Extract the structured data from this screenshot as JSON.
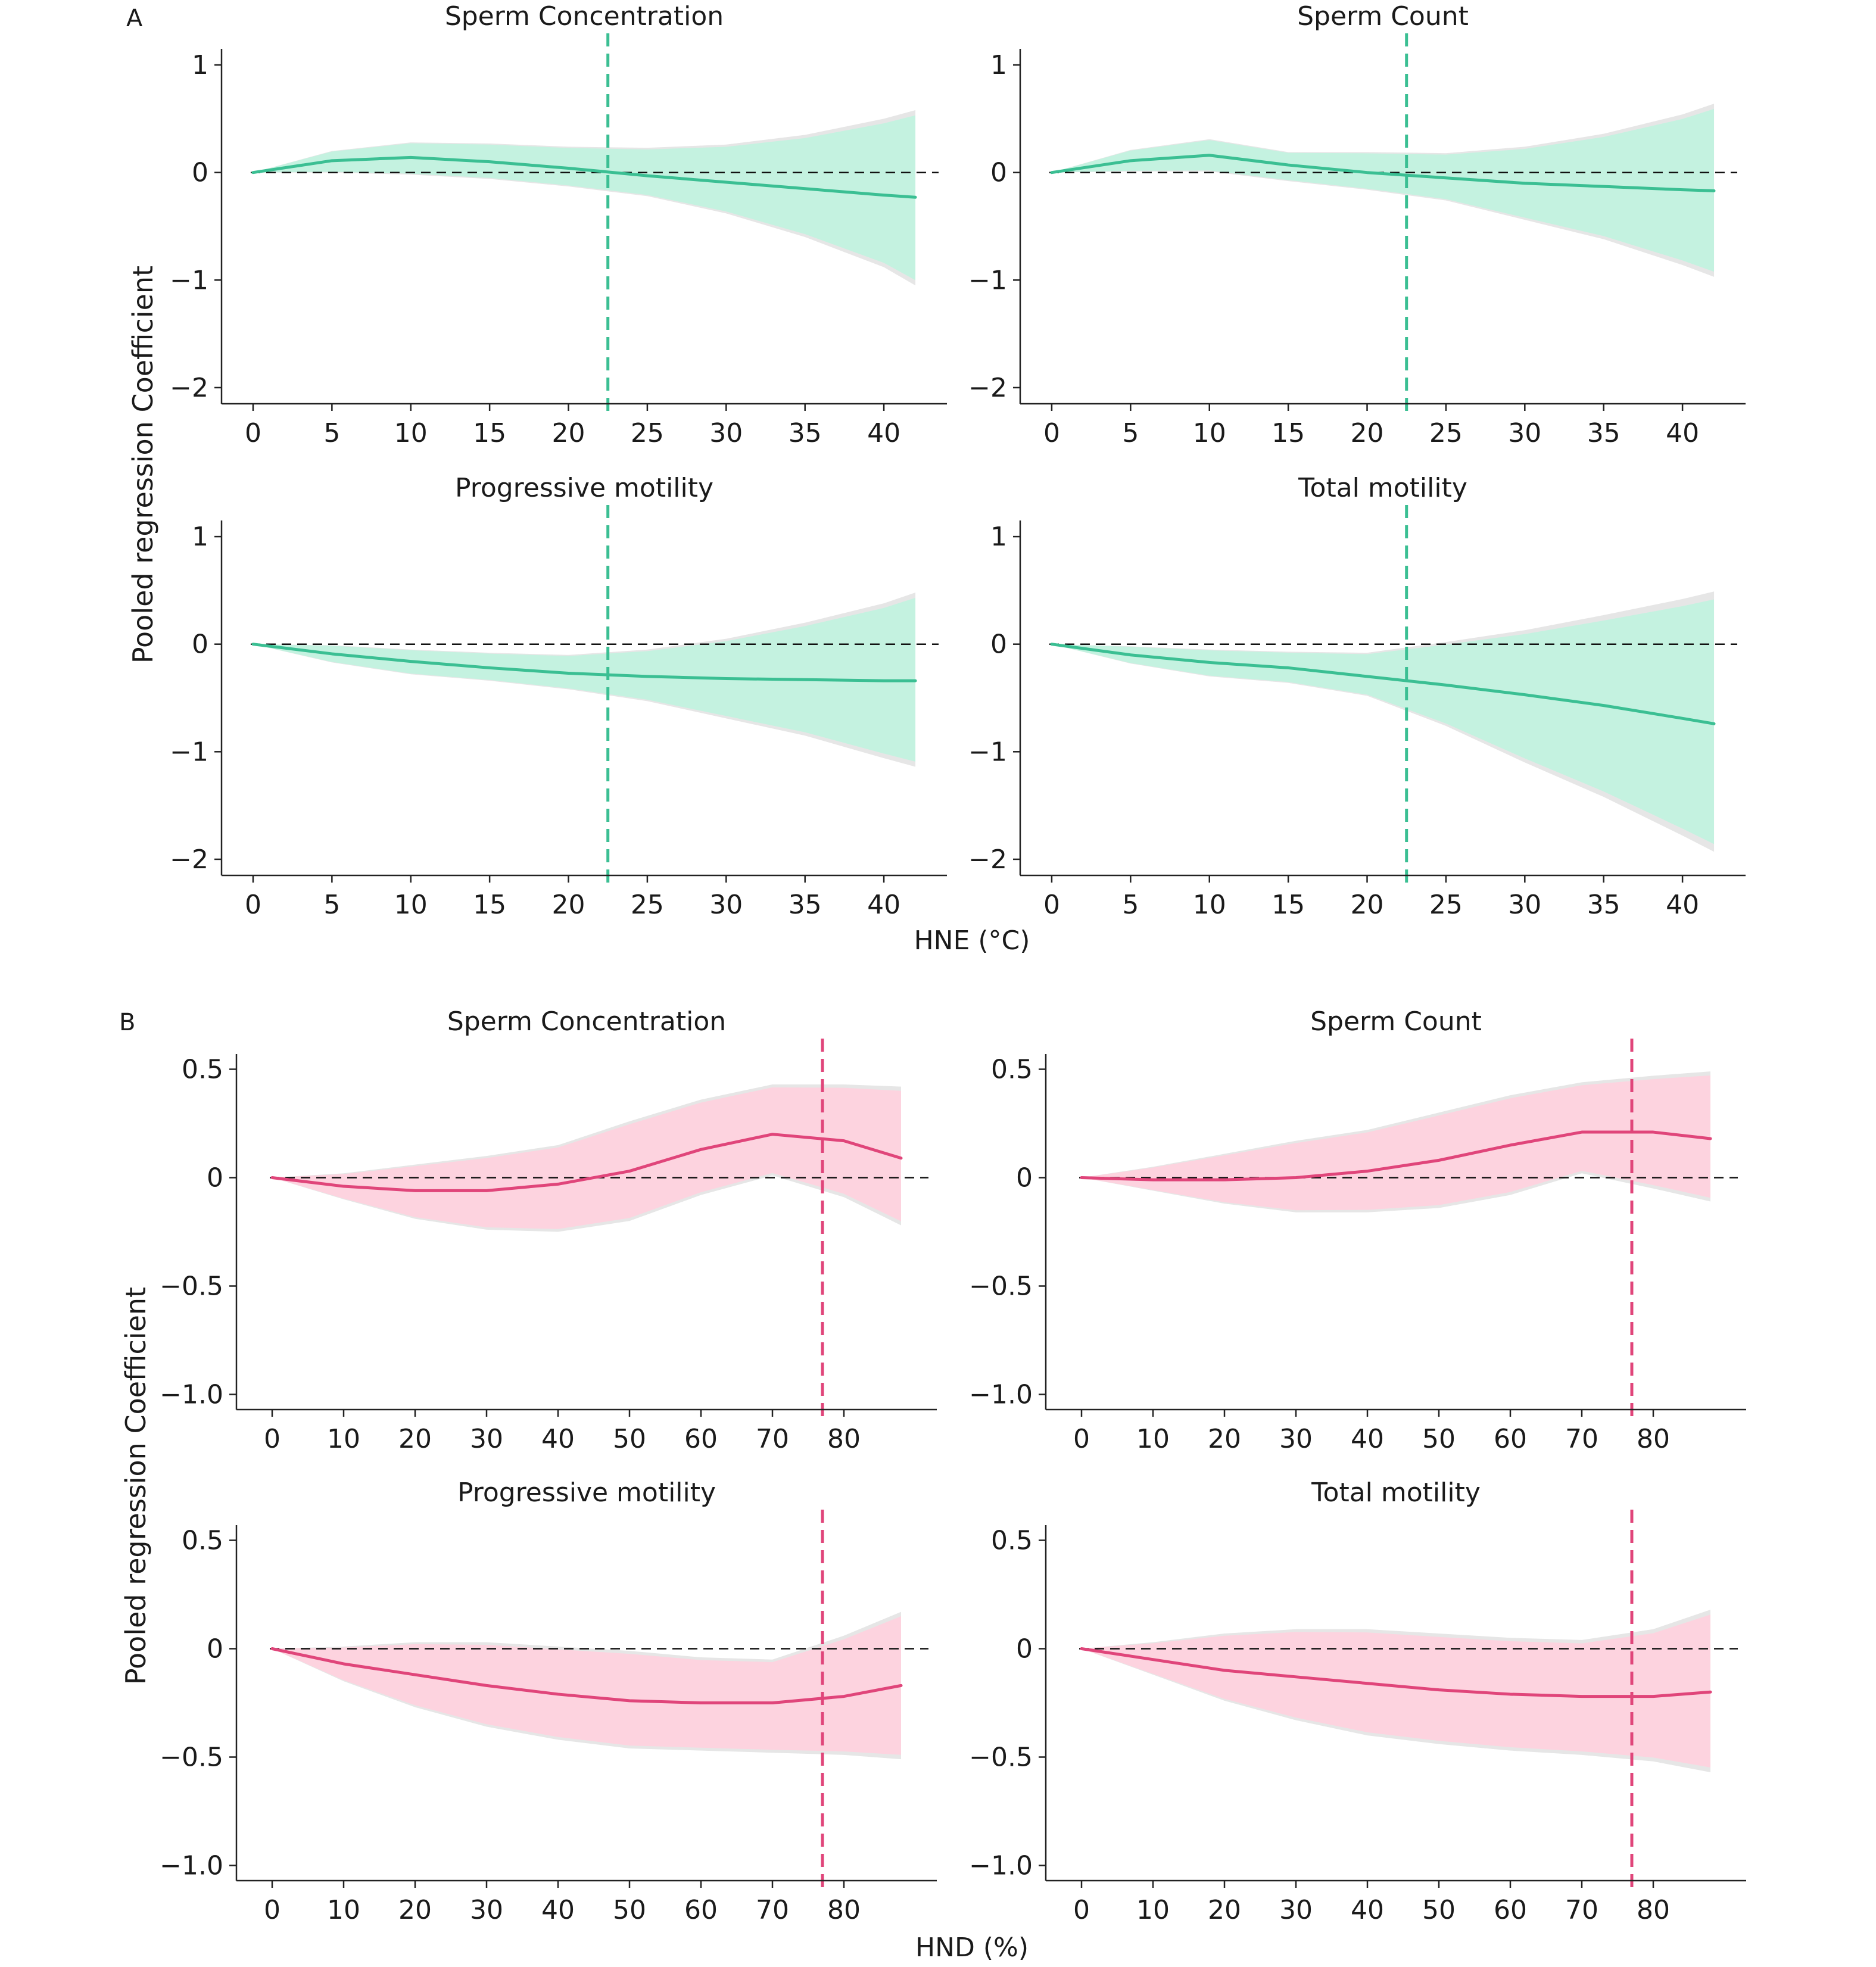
{
  "figure": {
    "sections": [
      {
        "letter": "A",
        "ylabel": "Pooled regression Coefficient",
        "xlabel": "HNE (°C)",
        "colors": {
          "line": "#3bbf93",
          "band": "#c4f2e0",
          "vline": "#3bbf93"
        }
      },
      {
        "letter": "B",
        "ylabel": "Pooled regression Coefficient",
        "xlabel": "HND (%)",
        "colors": {
          "line": "#e0457a",
          "band": "#fdd3df",
          "vline": "#e0457a"
        }
      }
    ]
  },
  "chart_data": [
    {
      "type": "line",
      "section": "A",
      "title": "Sperm Concentration",
      "xlim": [
        -2,
        44
      ],
      "ylim": [
        -2.15,
        1.15
      ],
      "xticks": [
        0,
        5,
        10,
        15,
        20,
        25,
        30,
        35,
        40
      ],
      "yticks": [
        1,
        0,
        -1,
        -2
      ],
      "ytick_labels": [
        "1",
        "0",
        "−1",
        "−2"
      ],
      "vline": 22.5,
      "reference_y": 0,
      "series": [
        {
          "x": [
            0,
            5,
            10,
            15,
            20,
            25,
            30,
            35,
            40,
            42
          ],
          "y": [
            0,
            0.11,
            0.14,
            0.1,
            0.04,
            -0.03,
            -0.09,
            -0.15,
            -0.21,
            -0.23
          ],
          "lower": [
            0,
            0.0,
            -0.02,
            -0.06,
            -0.13,
            -0.22,
            -0.38,
            -0.6,
            -0.88,
            -1.05
          ],
          "upper": [
            0,
            0.2,
            0.28,
            0.27,
            0.24,
            0.23,
            0.26,
            0.35,
            0.5,
            0.58
          ]
        }
      ]
    },
    {
      "type": "line",
      "section": "A",
      "title": "Sperm Count",
      "xlim": [
        -2,
        44
      ],
      "ylim": [
        -2.15,
        1.15
      ],
      "xticks": [
        0,
        5,
        10,
        15,
        20,
        25,
        30,
        35,
        40
      ],
      "yticks": [
        1,
        0,
        -1,
        -2
      ],
      "ytick_labels": [
        "1",
        "0",
        "−1",
        "−2"
      ],
      "vline": 22.5,
      "reference_y": 0,
      "series": [
        {
          "x": [
            0,
            5,
            10,
            15,
            20,
            25,
            30,
            35,
            40,
            42
          ],
          "y": [
            0,
            0.11,
            0.16,
            0.07,
            0.0,
            -0.05,
            -0.1,
            -0.13,
            -0.16,
            -0.17
          ],
          "lower": [
            0,
            0.01,
            0.01,
            -0.08,
            -0.16,
            -0.26,
            -0.44,
            -0.62,
            -0.86,
            -0.97
          ],
          "upper": [
            0,
            0.21,
            0.31,
            0.19,
            0.19,
            0.18,
            0.24,
            0.36,
            0.54,
            0.64
          ]
        }
      ]
    },
    {
      "type": "line",
      "section": "A",
      "title": "Progressive motility",
      "xlim": [
        -2,
        44
      ],
      "ylim": [
        -2.15,
        1.15
      ],
      "xticks": [
        0,
        5,
        10,
        15,
        20,
        25,
        30,
        35,
        40
      ],
      "yticks": [
        1,
        0,
        -1,
        -2
      ],
      "ytick_labels": [
        "1",
        "0",
        "−1",
        "−2"
      ],
      "vline": 22.5,
      "reference_y": 0,
      "series": [
        {
          "x": [
            0,
            5,
            10,
            15,
            20,
            25,
            30,
            35,
            40,
            42
          ],
          "y": [
            0,
            -0.09,
            -0.16,
            -0.22,
            -0.27,
            -0.3,
            -0.32,
            -0.33,
            -0.34,
            -0.34
          ],
          "lower": [
            0,
            -0.17,
            -0.28,
            -0.34,
            -0.42,
            -0.53,
            -0.69,
            -0.85,
            -1.06,
            -1.14
          ],
          "upper": [
            0,
            -0.01,
            -0.05,
            -0.08,
            -0.1,
            -0.05,
            0.05,
            0.2,
            0.38,
            0.48
          ]
        }
      ]
    },
    {
      "type": "line",
      "section": "A",
      "title": "Total motility",
      "xlim": [
        -2,
        44
      ],
      "ylim": [
        -2.15,
        1.15
      ],
      "xticks": [
        0,
        5,
        10,
        15,
        20,
        25,
        30,
        35,
        40
      ],
      "yticks": [
        1,
        0,
        -1,
        -2
      ],
      "ytick_labels": [
        "1",
        "0",
        "−1",
        "−2"
      ],
      "vline": 22.5,
      "reference_y": 0,
      "series": [
        {
          "x": [
            0,
            5,
            10,
            15,
            20,
            25,
            30,
            35,
            40,
            42
          ],
          "y": [
            0,
            -0.1,
            -0.17,
            -0.22,
            -0.3,
            -0.38,
            -0.47,
            -0.57,
            -0.69,
            -0.74
          ],
          "lower": [
            0,
            -0.18,
            -0.3,
            -0.36,
            -0.48,
            -0.76,
            -1.1,
            -1.42,
            -1.78,
            -1.93
          ],
          "upper": [
            0,
            -0.02,
            -0.05,
            -0.07,
            -0.08,
            0.02,
            0.13,
            0.27,
            0.42,
            0.49
          ]
        }
      ]
    },
    {
      "type": "line",
      "section": "B",
      "title": "Sperm Concentration",
      "xlim": [
        -5,
        93
      ],
      "ylim": [
        -1.07,
        0.57
      ],
      "xticks": [
        0,
        10,
        20,
        30,
        40,
        50,
        60,
        70,
        80
      ],
      "yticks": [
        0.5,
        0,
        -0.5,
        -1.0
      ],
      "ytick_labels": [
        "0.5",
        "0",
        "−0.5",
        "−1.0"
      ],
      "vline": 77,
      "reference_y": 0,
      "series": [
        {
          "x": [
            0,
            10,
            20,
            30,
            40,
            50,
            60,
            70,
            80,
            88
          ],
          "y": [
            0,
            -0.04,
            -0.06,
            -0.06,
            -0.03,
            0.03,
            0.13,
            0.2,
            0.17,
            0.09
          ],
          "lower": [
            0,
            -0.1,
            -0.19,
            -0.24,
            -0.25,
            -0.2,
            -0.08,
            0.01,
            -0.09,
            -0.22
          ],
          "upper": [
            0,
            0.02,
            0.06,
            0.1,
            0.15,
            0.26,
            0.36,
            0.43,
            0.43,
            0.42
          ]
        }
      ]
    },
    {
      "type": "line",
      "section": "B",
      "title": "Sperm Count",
      "xlim": [
        -5,
        93
      ],
      "ylim": [
        -1.07,
        0.57
      ],
      "xticks": [
        0,
        10,
        20,
        30,
        40,
        50,
        60,
        70,
        80
      ],
      "yticks": [
        0.5,
        0,
        -0.5,
        -1.0
      ],
      "ytick_labels": [
        "0.5",
        "0",
        "−0.5",
        "−1.0"
      ],
      "vline": 77,
      "reference_y": 0,
      "series": [
        {
          "x": [
            0,
            10,
            20,
            30,
            40,
            50,
            60,
            70,
            80,
            88
          ],
          "y": [
            0,
            -0.01,
            -0.01,
            0.0,
            0.03,
            0.08,
            0.15,
            0.21,
            0.21,
            0.18
          ],
          "lower": [
            0,
            -0.06,
            -0.12,
            -0.16,
            -0.16,
            -0.14,
            -0.08,
            0.02,
            -0.05,
            -0.11
          ],
          "upper": [
            0,
            0.05,
            0.11,
            0.17,
            0.22,
            0.3,
            0.38,
            0.44,
            0.47,
            0.49
          ]
        }
      ]
    },
    {
      "type": "line",
      "section": "B",
      "title": "Progressive motility",
      "xlim": [
        -5,
        93
      ],
      "ylim": [
        -1.07,
        0.57
      ],
      "xticks": [
        0,
        10,
        20,
        30,
        40,
        50,
        60,
        70,
        80
      ],
      "yticks": [
        0.5,
        0,
        -0.5,
        -1.0
      ],
      "ytick_labels": [
        "0.5",
        "0",
        "−0.5",
        "−1.0"
      ],
      "vline": 77,
      "reference_y": 0,
      "series": [
        {
          "x": [
            0,
            10,
            20,
            30,
            40,
            50,
            60,
            70,
            80,
            88
          ],
          "y": [
            0,
            -0.07,
            -0.12,
            -0.17,
            -0.21,
            -0.24,
            -0.25,
            -0.25,
            -0.22,
            -0.17
          ],
          "lower": [
            0,
            -0.15,
            -0.27,
            -0.36,
            -0.42,
            -0.46,
            -0.47,
            -0.48,
            -0.49,
            -0.51
          ],
          "upper": [
            0,
            0.01,
            0.03,
            0.03,
            0.01,
            -0.01,
            -0.04,
            -0.05,
            0.06,
            0.17
          ]
        }
      ]
    },
    {
      "type": "line",
      "section": "B",
      "title": "Total motility",
      "xlim": [
        -5,
        93
      ],
      "ylim": [
        -1.07,
        0.57
      ],
      "xticks": [
        0,
        10,
        20,
        30,
        40,
        50,
        60,
        70,
        80
      ],
      "yticks": [
        0.5,
        0,
        -0.5,
        -1.0
      ],
      "ytick_labels": [
        "0.5",
        "0",
        "−0.5",
        "−1.0"
      ],
      "vline": 77,
      "reference_y": 0,
      "series": [
        {
          "x": [
            0,
            10,
            20,
            30,
            40,
            50,
            60,
            70,
            80,
            88
          ],
          "y": [
            0,
            -0.05,
            -0.1,
            -0.13,
            -0.16,
            -0.19,
            -0.21,
            -0.22,
            -0.22,
            -0.2
          ],
          "lower": [
            0,
            -0.12,
            -0.24,
            -0.33,
            -0.4,
            -0.44,
            -0.47,
            -0.49,
            -0.52,
            -0.57
          ],
          "upper": [
            0,
            0.03,
            0.07,
            0.09,
            0.09,
            0.07,
            0.05,
            0.04,
            0.09,
            0.18
          ]
        }
      ]
    }
  ]
}
